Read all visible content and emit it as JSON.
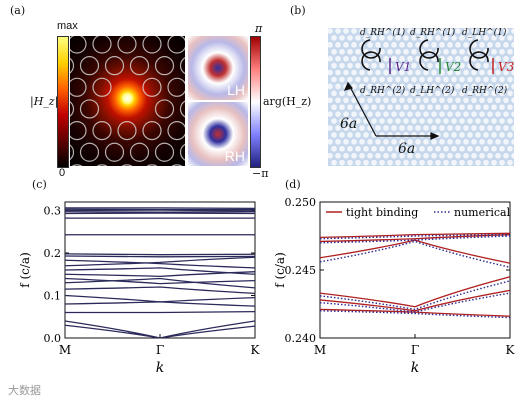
{
  "panels": {
    "a": {
      "label": "(a)",
      "colorbar_left": {
        "max": "max",
        "min": "0",
        "quantity": "|H_z|"
      },
      "colorbar_right": {
        "max": "π",
        "min": "−π",
        "quantity": "arg(H_z)"
      },
      "sub_labels": [
        "LH",
        "RH"
      ]
    },
    "b": {
      "label": "(b)",
      "dimensions": [
        "6a",
        "6a"
      ],
      "couplings": [
        "V1",
        "V2",
        "V3"
      ],
      "sites_top": [
        "d_RH^(1)",
        "d_RH^(1)",
        "d_LH^(1)"
      ],
      "sites_bottom": [
        "d_RH^(2)",
        "d_LH^(2)",
        "d_RH^(2)"
      ]
    },
    "c": {
      "label": "(c)"
    },
    "d": {
      "label": "(d)"
    }
  },
  "chart_data": [
    {
      "type": "line",
      "panel": "c",
      "xlabel": "k",
      "ylabel": "f (c/a)",
      "xticks": [
        "M",
        "Γ",
        "K"
      ],
      "yticks": [
        "0.0",
        "0.1",
        "0.2",
        "0.3"
      ],
      "ylim": [
        0.0,
        0.32
      ],
      "series": [
        {
          "values": [
            0.306,
            0.306,
            0.305
          ]
        },
        {
          "values": [
            0.303,
            0.302,
            0.302
          ]
        },
        {
          "values": [
            0.3,
            0.301,
            0.299
          ]
        },
        {
          "values": [
            0.297,
            0.296,
            0.297
          ]
        },
        {
          "values": [
            0.293,
            0.294,
            0.293
          ]
        },
        {
          "values": [
            0.282,
            0.282,
            0.282
          ]
        },
        {
          "values": [
            0.243,
            0.243,
            0.243
          ]
        },
        {
          "values": [
            0.198,
            0.196,
            0.197
          ]
        },
        {
          "values": [
            0.193,
            0.191,
            0.192
          ]
        },
        {
          "values": [
            0.183,
            0.175,
            0.165
          ]
        },
        {
          "values": [
            0.17,
            0.178,
            0.19
          ]
        },
        {
          "values": [
            0.16,
            0.165,
            0.15
          ]
        },
        {
          "values": [
            0.15,
            0.145,
            0.156
          ]
        },
        {
          "values": [
            0.14,
            0.128,
            0.135
          ]
        },
        {
          "values": [
            0.13,
            0.14,
            0.118
          ]
        },
        {
          "values": [
            0.115,
            0.12,
            0.105
          ]
        },
        {
          "values": [
            0.1,
            0.085,
            0.095
          ]
        },
        {
          "values": [
            0.08,
            0.085,
            0.075
          ]
        },
        {
          "values": [
            0.06,
            0.06,
            0.062
          ]
        },
        {
          "values": [
            0.04,
            0.0,
            0.04
          ]
        },
        {
          "values": [
            0.03,
            0.0,
            0.028
          ]
        }
      ]
    },
    {
      "type": "line",
      "panel": "d",
      "xlabel": "k",
      "ylabel": "f (c/a)",
      "xticks": [
        "M",
        "Γ",
        "K"
      ],
      "yticks": [
        "0.240",
        "0.245",
        "0.250"
      ],
      "ylim": [
        0.24,
        0.25
      ],
      "legend": {
        "position": "top",
        "entries": [
          "tight binding",
          "numerical"
        ]
      },
      "series": [
        {
          "name": "tight binding",
          "color": "#b02020",
          "style": "solid",
          "curves": [
            [
              0.2474,
              0.2476,
              0.2477
            ],
            [
              0.2471,
              0.2473,
              0.2476
            ],
            [
              0.2459,
              0.2472,
              0.2455
            ],
            [
              0.2433,
              0.2423,
              0.2445
            ],
            [
              0.2428,
              0.242,
              0.2435
            ],
            [
              0.2421,
              0.2419,
              0.2416
            ]
          ]
        },
        {
          "name": "numerical",
          "color": "#2a2a90",
          "style": "dotted",
          "curves": [
            [
              0.2473,
              0.2475,
              0.2476
            ],
            [
              0.247,
              0.2472,
              0.2475
            ],
            [
              0.2456,
              0.2471,
              0.2452
            ],
            [
              0.2431,
              0.2421,
              0.2442
            ],
            [
              0.2426,
              0.2419,
              0.2433
            ],
            [
              0.242,
              0.2418,
              0.2415
            ]
          ]
        }
      ]
    }
  ],
  "watermark": "大数据"
}
